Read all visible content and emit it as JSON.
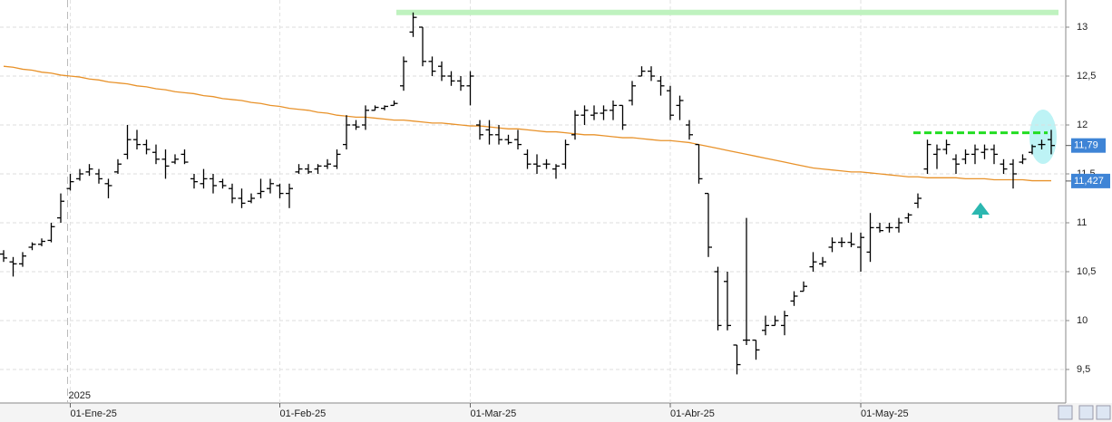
{
  "chart_data": {
    "type": "ohlc",
    "year_label": "2025",
    "categories": [
      null,
      null,
      null,
      null,
      null,
      null,
      null,
      "01-Ene-25",
      null,
      null,
      null,
      null,
      null,
      null,
      null,
      null,
      null,
      null,
      null,
      null,
      null,
      null,
      null,
      null,
      null,
      null,
      null,
      null,
      null,
      "01-Feb-25",
      null,
      null,
      null,
      null,
      null,
      null,
      null,
      null,
      null,
      null,
      null,
      null,
      null,
      null,
      null,
      null,
      null,
      null,
      null,
      "01-Mar-25",
      null,
      null,
      null,
      null,
      null,
      null,
      null,
      null,
      null,
      null,
      null,
      null,
      null,
      null,
      null,
      null,
      null,
      null,
      null,
      null,
      "01-Abr-25",
      null,
      null,
      null,
      null,
      null,
      null,
      null,
      null,
      null,
      null,
      null,
      null,
      null,
      null,
      null,
      null,
      null,
      null,
      null,
      "01-May-25",
      null,
      null,
      null,
      null,
      null,
      null,
      null,
      null,
      null,
      null,
      null,
      null,
      null,
      null,
      null,
      null,
      null,
      null,
      null,
      null
    ],
    "ohlc": [
      [
        10.68,
        10.72,
        10.6,
        10.64
      ],
      [
        10.6,
        10.65,
        10.45,
        10.58
      ],
      [
        10.58,
        10.7,
        10.55,
        10.66
      ],
      [
        10.75,
        10.8,
        10.72,
        10.78
      ],
      [
        10.78,
        10.84,
        10.76,
        10.81
      ],
      [
        10.82,
        11.0,
        10.8,
        10.96
      ],
      [
        11.05,
        11.3,
        11.0,
        11.22
      ],
      [
        11.35,
        11.5,
        11.33,
        11.42
      ],
      [
        11.45,
        11.55,
        11.43,
        11.5
      ],
      [
        11.52,
        11.6,
        11.48,
        11.55
      ],
      [
        11.5,
        11.55,
        11.4,
        11.45
      ],
      [
        11.4,
        11.45,
        11.25,
        11.38
      ],
      [
        11.52,
        11.65,
        11.5,
        11.6
      ],
      [
        11.7,
        12.0,
        11.65,
        11.85
      ],
      [
        11.85,
        11.95,
        11.75,
        11.8
      ],
      [
        11.8,
        11.85,
        11.7,
        11.75
      ],
      [
        11.72,
        11.8,
        11.6,
        11.65
      ],
      [
        11.65,
        11.75,
        11.45,
        11.58
      ],
      [
        11.62,
        11.7,
        11.6,
        11.65
      ],
      [
        11.7,
        11.75,
        11.6,
        11.62
      ],
      [
        11.45,
        11.5,
        11.35,
        11.42
      ],
      [
        11.4,
        11.55,
        11.35,
        11.45
      ],
      [
        11.45,
        11.5,
        11.3,
        11.38
      ],
      [
        11.42,
        11.45,
        11.35,
        11.38
      ],
      [
        11.35,
        11.4,
        11.2,
        11.25
      ],
      [
        11.25,
        11.35,
        11.15,
        11.2
      ],
      [
        11.22,
        11.3,
        11.2,
        11.25
      ],
      [
        11.3,
        11.45,
        11.25,
        11.32
      ],
      [
        11.35,
        11.45,
        11.3,
        11.4
      ],
      [
        11.38,
        11.4,
        11.25,
        11.3
      ],
      [
        11.3,
        11.4,
        11.15,
        11.35
      ],
      [
        11.52,
        11.6,
        11.5,
        11.55
      ],
      [
        11.55,
        11.6,
        11.5,
        11.52
      ],
      [
        11.55,
        11.6,
        11.5,
        11.58
      ],
      [
        11.58,
        11.65,
        11.55,
        11.6
      ],
      [
        11.58,
        11.75,
        11.55,
        11.7
      ],
      [
        11.8,
        12.1,
        11.75,
        12.0
      ],
      [
        12.0,
        12.05,
        11.95,
        11.98
      ],
      [
        12.0,
        12.2,
        11.95,
        12.15
      ],
      [
        12.15,
        12.2,
        12.15,
        12.18
      ],
      [
        12.17,
        12.2,
        12.15,
        12.19
      ],
      [
        12.2,
        12.25,
        12.2,
        12.22
      ],
      [
        12.4,
        12.7,
        12.35,
        12.65
      ],
      [
        12.95,
        13.15,
        12.9,
        13.1
      ],
      [
        13.0,
        13.0,
        12.6,
        12.65
      ],
      [
        12.65,
        12.7,
        12.5,
        12.55
      ],
      [
        12.6,
        12.65,
        12.45,
        12.5
      ],
      [
        12.5,
        12.55,
        12.4,
        12.45
      ],
      [
        12.45,
        12.5,
        12.35,
        12.4
      ],
      [
        12.4,
        12.55,
        12.2,
        12.5
      ],
      [
        12.0,
        12.05,
        11.85,
        11.9
      ],
      [
        11.95,
        12.05,
        11.8,
        11.9
      ],
      [
        11.9,
        12.0,
        11.8,
        11.85
      ],
      [
        11.85,
        11.9,
        11.8,
        11.82
      ],
      [
        11.85,
        11.95,
        11.75,
        11.8
      ],
      [
        11.7,
        11.75,
        11.55,
        11.6
      ],
      [
        11.6,
        11.7,
        11.5,
        11.58
      ],
      [
        11.6,
        11.65,
        11.55,
        11.6
      ],
      [
        11.55,
        11.6,
        11.45,
        11.58
      ],
      [
        11.6,
        11.85,
        11.55,
        11.8
      ],
      [
        11.9,
        12.15,
        11.85,
        12.1
      ],
      [
        12.1,
        12.2,
        12.0,
        12.15
      ],
      [
        12.1,
        12.2,
        12.05,
        12.12
      ],
      [
        12.12,
        12.2,
        12.05,
        12.15
      ],
      [
        12.15,
        12.25,
        12.05,
        12.2
      ],
      [
        12.2,
        12.2,
        11.95,
        12.0
      ],
      [
        12.25,
        12.45,
        12.2,
        12.4
      ],
      [
        12.5,
        12.6,
        12.5,
        12.55
      ],
      [
        12.55,
        12.6,
        12.45,
        12.5
      ],
      [
        12.45,
        12.5,
        12.3,
        12.4
      ],
      [
        12.35,
        12.4,
        12.05,
        12.1
      ],
      [
        12.2,
        12.3,
        12.05,
        12.25
      ],
      [
        12.0,
        12.05,
        11.85,
        11.9
      ],
      [
        11.8,
        11.8,
        11.4,
        11.45
      ],
      [
        11.3,
        11.3,
        10.65,
        10.75
      ],
      [
        10.5,
        10.55,
        9.9,
        9.95
      ],
      [
        10.4,
        10.5,
        9.9,
        9.95
      ],
      [
        9.75,
        9.75,
        9.45,
        9.55
      ],
      [
        9.8,
        11.05,
        9.75,
        9.8
      ],
      [
        9.8,
        9.8,
        9.6,
        9.7
      ],
      [
        9.9,
        10.05,
        9.85,
        9.95
      ],
      [
        9.95,
        10.05,
        9.95,
        10.0
      ],
      [
        9.95,
        10.1,
        9.85,
        10.05
      ],
      [
        10.2,
        10.3,
        10.15,
        10.25
      ],
      [
        10.3,
        10.4,
        10.3,
        10.35
      ],
      [
        10.55,
        10.7,
        10.5,
        10.6
      ],
      [
        10.58,
        10.65,
        10.55,
        10.6
      ],
      [
        10.75,
        10.85,
        10.7,
        10.8
      ],
      [
        10.8,
        10.85,
        10.75,
        10.8
      ],
      [
        10.8,
        10.9,
        10.75,
        10.78
      ],
      [
        10.75,
        10.9,
        10.5,
        10.85
      ],
      [
        10.7,
        11.1,
        10.6,
        10.95
      ],
      [
        10.95,
        11.0,
        10.9,
        10.92
      ],
      [
        10.95,
        11.0,
        10.9,
        10.95
      ],
      [
        10.95,
        11.05,
        10.9,
        11.0
      ],
      [
        11.05,
        11.1,
        11.0,
        11.08
      ],
      [
        11.2,
        11.3,
        11.15,
        11.25
      ],
      [
        11.55,
        11.85,
        11.5,
        11.8
      ],
      [
        11.7,
        11.8,
        11.55,
        11.75
      ],
      [
        11.75,
        11.85,
        11.7,
        11.8
      ],
      [
        11.65,
        11.7,
        11.5,
        11.6
      ],
      [
        11.65,
        11.75,
        11.6,
        11.7
      ],
      [
        11.7,
        11.8,
        11.6,
        11.75
      ],
      [
        11.72,
        11.8,
        11.65,
        11.75
      ],
      [
        11.75,
        11.8,
        11.6,
        11.7
      ],
      [
        11.6,
        11.65,
        11.5,
        11.55
      ],
      [
        11.6,
        11.65,
        11.35,
        11.5
      ],
      [
        11.62,
        11.7,
        11.6,
        11.65
      ],
      [
        11.72,
        11.8,
        11.7,
        11.78
      ],
      [
        11.8,
        11.85,
        11.75,
        11.8
      ],
      [
        11.85,
        11.95,
        11.7,
        11.79
      ]
    ],
    "bar_color": "#000000",
    "moving_average": {
      "color": "#e8922a",
      "values": [
        12.6,
        12.59,
        12.57,
        12.56,
        12.54,
        12.53,
        12.51,
        12.5,
        12.49,
        12.47,
        12.46,
        12.44,
        12.43,
        12.42,
        12.4,
        12.39,
        12.37,
        12.36,
        12.34,
        12.33,
        12.32,
        12.3,
        12.29,
        12.27,
        12.26,
        12.25,
        12.23,
        12.22,
        12.2,
        12.19,
        12.17,
        12.16,
        12.15,
        12.13,
        12.12,
        12.1,
        12.09,
        12.08,
        12.08,
        12.07,
        12.06,
        12.05,
        12.05,
        12.04,
        12.03,
        12.02,
        12.02,
        12.01,
        12.0,
        11.99,
        11.99,
        11.98,
        11.97,
        11.96,
        11.96,
        11.95,
        11.94,
        11.93,
        11.93,
        11.92,
        11.91,
        11.9,
        11.9,
        11.89,
        11.88,
        11.87,
        11.87,
        11.86,
        11.85,
        11.84,
        11.84,
        11.83,
        11.82,
        11.8,
        11.78,
        11.76,
        11.74,
        11.72,
        11.7,
        11.68,
        11.66,
        11.64,
        11.62,
        11.6,
        11.58,
        11.56,
        11.55,
        11.54,
        11.53,
        11.52,
        11.52,
        11.51,
        11.5,
        11.49,
        11.48,
        11.47,
        11.47,
        11.46,
        11.46,
        11.46,
        11.46,
        11.45,
        11.45,
        11.45,
        11.44,
        11.44,
        11.44,
        11.44,
        11.43,
        11.43,
        11.43
      ]
    },
    "last_price": {
      "value": 11.79,
      "label": "11,79"
    },
    "ma_last": {
      "value": 11.427,
      "label": "11,427"
    },
    "resistance": {
      "value": 13.15,
      "color": "#bff2bf"
    },
    "breakout_level": {
      "value": 11.92,
      "color": "#22dd22"
    },
    "ylim": [
      9.2,
      13.15
    ],
    "yticks": [
      {
        "value": 9.5,
        "label": "9,5"
      },
      10,
      {
        "value": 10.5,
        "label": "10,5"
      },
      11,
      {
        "value": 11.5,
        "label": "11,5"
      },
      12,
      {
        "value": 12.5,
        "label": "12,5"
      },
      13
    ],
    "grid": true
  }
}
